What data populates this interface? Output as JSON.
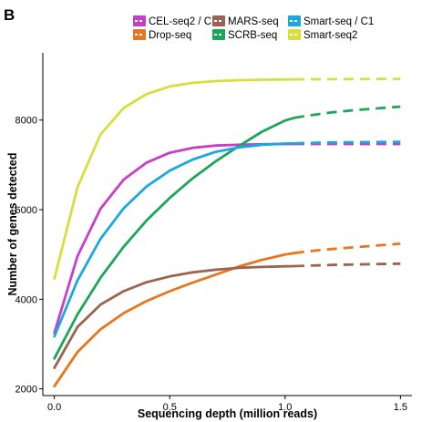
{
  "panel_label": "B",
  "chart_data": {
    "type": "line",
    "title": "",
    "xlabel": "Sequencing depth (million reads)",
    "ylabel": "Number of genes detected",
    "xlim": [
      -0.05,
      1.55
    ],
    "ylim": [
      1850,
      9500
    ],
    "xticks": [
      0.0,
      0.5,
      1.0,
      1.5
    ],
    "xtick_labels": [
      "0.0",
      "0.5",
      "1.0",
      "1.5"
    ],
    "yticks": [
      2000,
      4000,
      6000,
      8000
    ],
    "ytick_labels": [
      "2000",
      "4000",
      "6000",
      "8000"
    ],
    "grid": false,
    "legend_position": "top",
    "solid_until": 1.04,
    "extrapolated_until": 1.5,
    "series": [
      {
        "name": "CEL-seq2 / C1",
        "color": "#C73FC7",
        "x": [
          0.0,
          0.1,
          0.2,
          0.3,
          0.4,
          0.5,
          0.6,
          0.7,
          0.8,
          0.9,
          1.0,
          1.04,
          1.1,
          1.2,
          1.3,
          1.4,
          1.5
        ],
        "y": [
          3250,
          4960,
          6020,
          6670,
          7050,
          7270,
          7380,
          7430,
          7450,
          7460,
          7465,
          7465,
          7465,
          7465,
          7465,
          7465,
          7465
        ]
      },
      {
        "name": "Drop-seq",
        "color": "#E8761E",
        "x": [
          0.0,
          0.1,
          0.2,
          0.3,
          0.4,
          0.5,
          0.6,
          0.7,
          0.8,
          0.9,
          1.0,
          1.04,
          1.1,
          1.2,
          1.3,
          1.4,
          1.5
        ],
        "y": [
          2060,
          2820,
          3330,
          3690,
          3960,
          4180,
          4370,
          4550,
          4730,
          4880,
          5000,
          5030,
          5070,
          5120,
          5160,
          5200,
          5240
        ]
      },
      {
        "name": "MARS-seq",
        "color": "#9B6350",
        "x": [
          0.0,
          0.1,
          0.2,
          0.3,
          0.4,
          0.5,
          0.6,
          0.7,
          0.8,
          0.9,
          1.0,
          1.04,
          1.1,
          1.2,
          1.3,
          1.4,
          1.5
        ],
        "y": [
          2470,
          3380,
          3880,
          4180,
          4380,
          4510,
          4600,
          4660,
          4700,
          4720,
          4735,
          4740,
          4750,
          4765,
          4775,
          4785,
          4795
        ]
      },
      {
        "name": "SCRB-seq",
        "color": "#1BA659",
        "x": [
          0.0,
          0.1,
          0.2,
          0.3,
          0.4,
          0.5,
          0.6,
          0.7,
          0.8,
          0.9,
          1.0,
          1.04,
          1.1,
          1.2,
          1.3,
          1.4,
          1.5
        ],
        "y": [
          2680,
          3660,
          4480,
          5170,
          5760,
          6260,
          6700,
          7080,
          7420,
          7740,
          7990,
          8050,
          8100,
          8170,
          8220,
          8260,
          8300
        ]
      },
      {
        "name": "Smart-seq / C1",
        "color": "#1CA7E0",
        "x": [
          0.0,
          0.1,
          0.2,
          0.3,
          0.4,
          0.5,
          0.6,
          0.7,
          0.8,
          0.9,
          1.0,
          1.04,
          1.1,
          1.2,
          1.3,
          1.4,
          1.5
        ],
        "y": [
          3170,
          4420,
          5350,
          6030,
          6520,
          6870,
          7120,
          7290,
          7390,
          7450,
          7475,
          7480,
          7490,
          7500,
          7505,
          7510,
          7515
        ]
      },
      {
        "name": "Smart-seq2",
        "color": "#D9DE3A",
        "x": [
          0.0,
          0.1,
          0.2,
          0.3,
          0.4,
          0.5,
          0.6,
          0.7,
          0.8,
          0.9,
          1.0,
          1.04,
          1.1,
          1.2,
          1.3,
          1.4,
          1.5
        ],
        "y": [
          4460,
          6500,
          7680,
          8270,
          8580,
          8750,
          8830,
          8870,
          8890,
          8900,
          8905,
          8908,
          8910,
          8912,
          8914,
          8916,
          8918
        ]
      }
    ]
  }
}
